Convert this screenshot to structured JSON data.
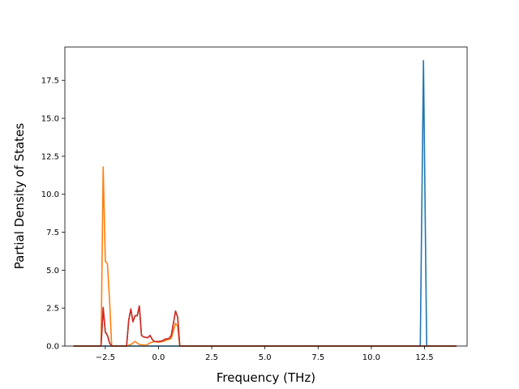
{
  "chart_data": {
    "type": "line",
    "title": "",
    "xlabel": "Frequency (THz)",
    "ylabel": "Partial Density of States",
    "xlim": [
      -4.4,
      14.5
    ],
    "ylim": [
      0,
      19.7
    ],
    "xticks": [
      -2.5,
      0.0,
      2.5,
      5.0,
      7.5,
      10.0,
      12.5
    ],
    "xtick_labels": [
      "−2.5",
      "0.0",
      "2.5",
      "5.0",
      "7.5",
      "10.0",
      "12.5"
    ],
    "yticks": [
      0.0,
      2.5,
      5.0,
      7.5,
      10.0,
      12.5,
      15.0,
      17.5
    ],
    "ytick_labels": [
      "0.0",
      "2.5",
      "5.0",
      "7.5",
      "10.0",
      "12.5",
      "15.0",
      "17.5"
    ],
    "grid": false,
    "series": [
      {
        "color": "#1f77b4",
        "points": [
          [
            -4.0,
            0
          ],
          [
            12.3,
            0
          ],
          [
            12.45,
            18.8
          ],
          [
            12.6,
            0
          ],
          [
            14.0,
            0
          ]
        ]
      },
      {
        "color": "#ff7f0e",
        "points": [
          [
            -4.0,
            0
          ],
          [
            -2.7,
            0
          ],
          [
            -2.6,
            11.8
          ],
          [
            -2.5,
            5.6
          ],
          [
            -2.4,
            5.4
          ],
          [
            -2.3,
            3.0
          ],
          [
            -2.2,
            0
          ],
          [
            -1.5,
            0
          ],
          [
            -1.3,
            0.1
          ],
          [
            -1.1,
            0.3
          ],
          [
            -0.9,
            0.1
          ],
          [
            -0.6,
            0.05
          ],
          [
            -0.4,
            0.2
          ],
          [
            -0.2,
            0.3
          ],
          [
            0.0,
            0.25
          ],
          [
            0.2,
            0.3
          ],
          [
            0.4,
            0.4
          ],
          [
            0.6,
            0.5
          ],
          [
            0.8,
            1.5
          ],
          [
            0.9,
            1.3
          ],
          [
            1.0,
            0
          ],
          [
            14.0,
            0
          ]
        ]
      },
      {
        "color": "#2ca02c",
        "points": [
          [
            -4.0,
            0
          ],
          [
            -2.7,
            0
          ],
          [
            -2.6,
            2.5
          ],
          [
            -2.5,
            0.9
          ],
          [
            -2.4,
            0.7
          ],
          [
            -2.3,
            0.2
          ],
          [
            -2.2,
            0
          ],
          [
            -1.5,
            0
          ],
          [
            -1.4,
            1.7
          ],
          [
            -1.3,
            2.4
          ],
          [
            -1.2,
            1.6
          ],
          [
            -1.1,
            2.0
          ],
          [
            -1.0,
            2.0
          ],
          [
            -0.9,
            2.6
          ],
          [
            -0.8,
            0.7
          ],
          [
            -0.7,
            0.6
          ],
          [
            -0.5,
            0.55
          ],
          [
            -0.4,
            0.7
          ],
          [
            -0.3,
            0.45
          ],
          [
            -0.2,
            0.3
          ],
          [
            0.0,
            0.3
          ],
          [
            0.2,
            0.35
          ],
          [
            0.3,
            0.45
          ],
          [
            0.5,
            0.5
          ],
          [
            0.6,
            0.7
          ],
          [
            0.7,
            1.5
          ],
          [
            0.8,
            2.3
          ],
          [
            0.9,
            1.9
          ],
          [
            1.0,
            0
          ],
          [
            14.0,
            0
          ]
        ]
      },
      {
        "color": "#d62728",
        "points": [
          [
            -4.0,
            0
          ],
          [
            -2.7,
            0
          ],
          [
            -2.6,
            2.55
          ],
          [
            -2.5,
            0.95
          ],
          [
            -2.4,
            0.7
          ],
          [
            -2.3,
            0.2
          ],
          [
            -2.2,
            0
          ],
          [
            -1.5,
            0
          ],
          [
            -1.4,
            1.7
          ],
          [
            -1.3,
            2.45
          ],
          [
            -1.2,
            1.6
          ],
          [
            -1.1,
            2.0
          ],
          [
            -1.0,
            2.0
          ],
          [
            -0.9,
            2.65
          ],
          [
            -0.8,
            0.7
          ],
          [
            -0.7,
            0.6
          ],
          [
            -0.5,
            0.55
          ],
          [
            -0.4,
            0.7
          ],
          [
            -0.3,
            0.45
          ],
          [
            -0.2,
            0.3
          ],
          [
            0.0,
            0.3
          ],
          [
            0.2,
            0.35
          ],
          [
            0.3,
            0.45
          ],
          [
            0.5,
            0.5
          ],
          [
            0.6,
            0.7
          ],
          [
            0.7,
            1.5
          ],
          [
            0.8,
            2.3
          ],
          [
            0.9,
            1.9
          ],
          [
            1.0,
            0
          ],
          [
            14.0,
            0
          ]
        ]
      }
    ]
  }
}
